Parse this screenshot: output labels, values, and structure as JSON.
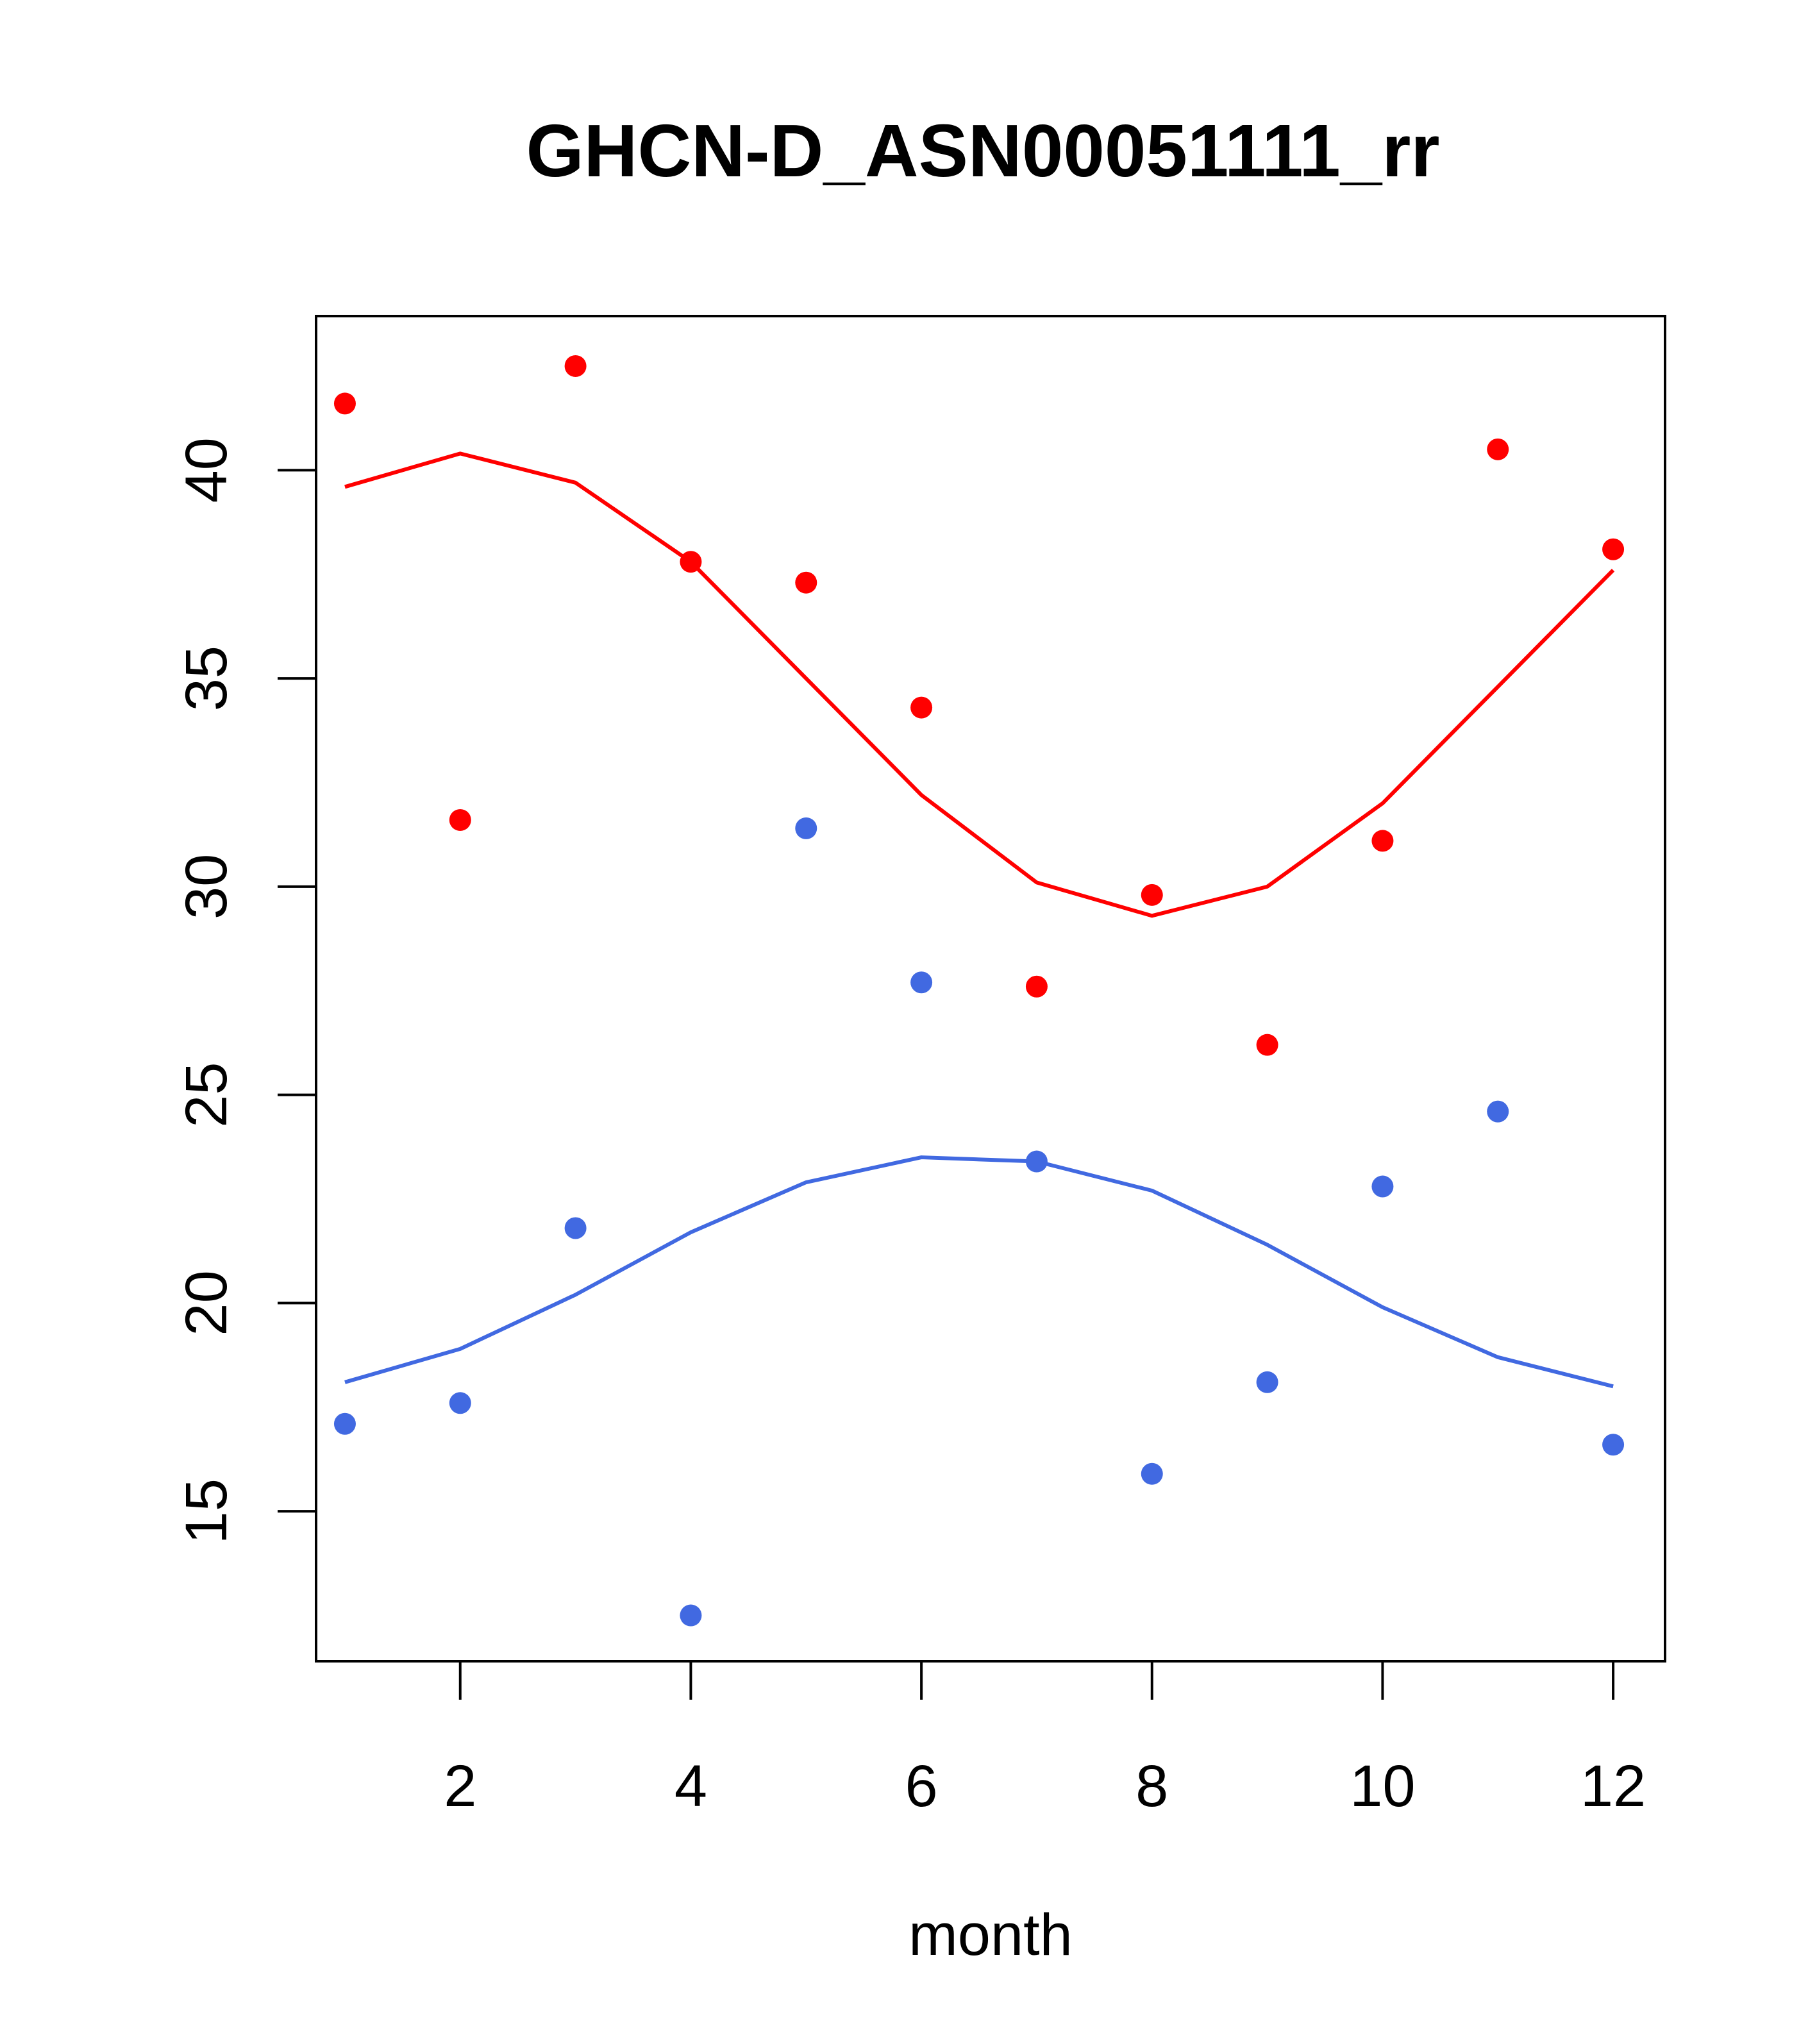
{
  "chart_data": {
    "type": "scatter",
    "title": "GHCN-D_ASN00051111_rr",
    "xlabel": "month",
    "ylabel": "",
    "xlim": [
      0.75,
      12.45
    ],
    "ylim": [
      11.4,
      43.7
    ],
    "x_ticks": [
      2,
      4,
      6,
      8,
      10,
      12
    ],
    "y_ticks": [
      15,
      20,
      25,
      30,
      35,
      40
    ],
    "grid": false,
    "legend": "none",
    "series": [
      {
        "color": "#ff0000",
        "points": {
          "x": [
            1,
            2,
            3,
            4,
            5,
            6,
            7,
            8,
            9,
            10,
            11,
            12
          ],
          "y": [
            41.6,
            31.6,
            42.5,
            37.8,
            37.3,
            34.3,
            27.6,
            29.8,
            26.2,
            31.1,
            40.5,
            38.1
          ]
        },
        "line": {
          "x": [
            1,
            2,
            3,
            4,
            5,
            6,
            7,
            8,
            9,
            10,
            11,
            12
          ],
          "y": [
            39.6,
            40.4,
            39.7,
            37.8,
            35.0,
            32.2,
            30.1,
            29.3,
            30.0,
            32.0,
            34.8,
            37.6
          ]
        }
      },
      {
        "color": "#4169e1",
        "points": {
          "x": [
            1,
            2,
            3,
            4,
            5,
            6,
            7,
            8,
            9,
            10,
            11,
            12
          ],
          "y": [
            17.1,
            17.6,
            21.8,
            12.5,
            31.4,
            27.7,
            23.4,
            15.9,
            18.1,
            22.8,
            24.6,
            16.6
          ]
        },
        "line": {
          "x": [
            1,
            2,
            3,
            4,
            5,
            6,
            7,
            8,
            9,
            10,
            11,
            12
          ],
          "y": [
            18.1,
            18.9,
            20.2,
            21.7,
            22.9,
            23.5,
            23.4,
            22.7,
            21.4,
            19.9,
            18.7,
            18.0
          ]
        }
      }
    ]
  }
}
